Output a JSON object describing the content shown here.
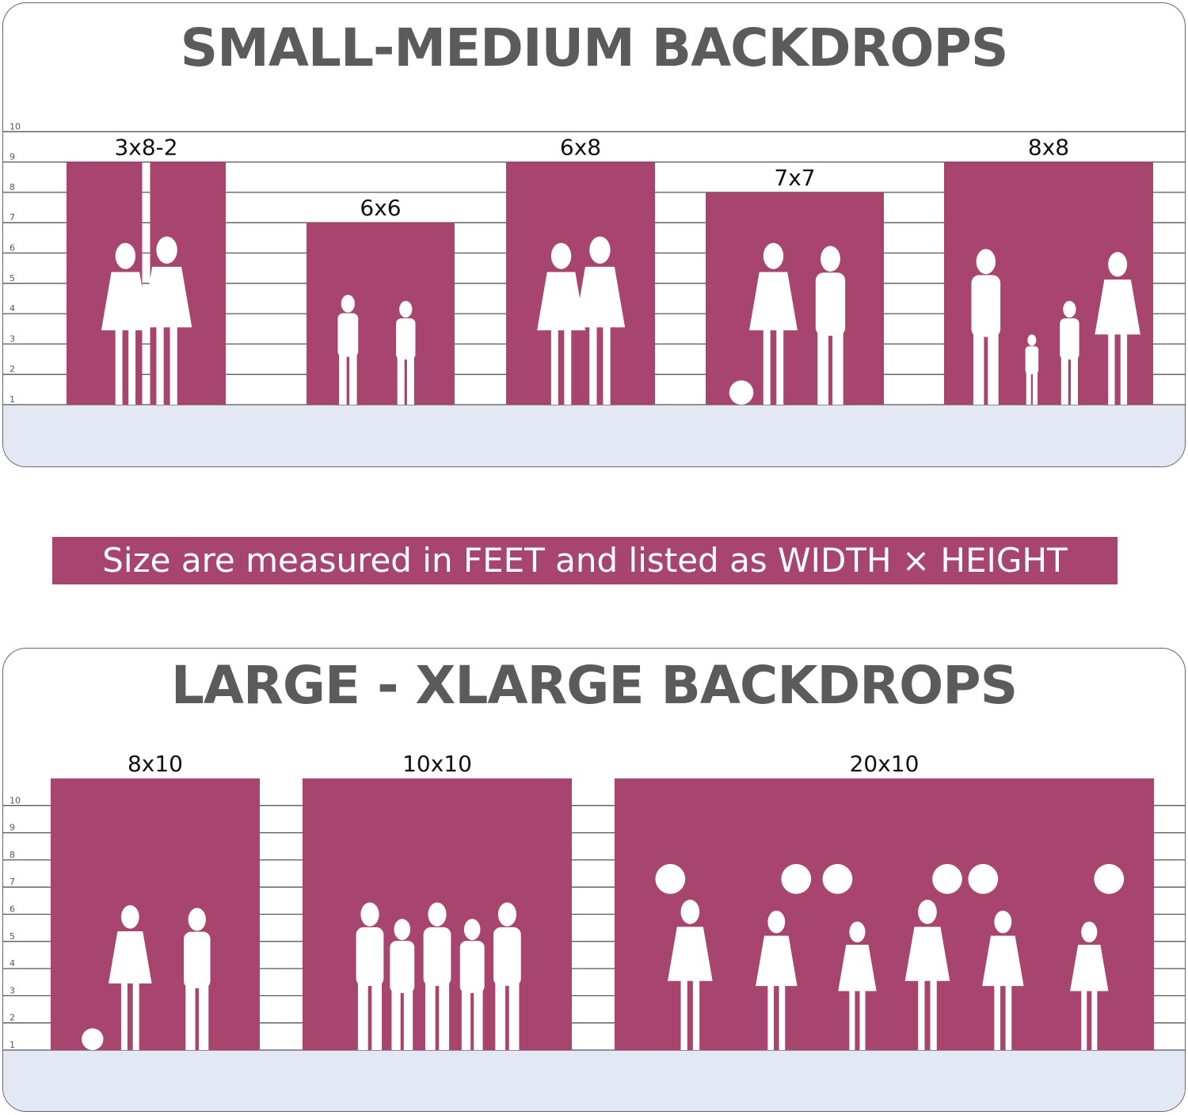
{
  "top_panel": {
    "title": "SMALL-MEDIUM BACKDROPS",
    "axis_ticks": [
      "1",
      "2",
      "3",
      "4",
      "5",
      "6",
      "7",
      "8",
      "9",
      "10"
    ],
    "backdrops": [
      {
        "label": "3x8-2",
        "width_ft": 3,
        "height_ft": 8,
        "panels": 2,
        "silhouette": "two-girls"
      },
      {
        "label": "6x6",
        "width_ft": 6,
        "height_ft": 6,
        "panels": 1,
        "silhouette": "two-children"
      },
      {
        "label": "6x8",
        "width_ft": 6,
        "height_ft": 8,
        "panels": 1,
        "silhouette": "two-girls"
      },
      {
        "label": "7x7",
        "width_ft": 7,
        "height_ft": 7,
        "panels": 1,
        "silhouette": "couple-with-bicycle"
      },
      {
        "label": "8x8",
        "width_ft": 8,
        "height_ft": 8,
        "panels": 1,
        "silhouette": "family-of-four"
      }
    ]
  },
  "banner": {
    "text": "Size are measured in FEET and listed as WIDTH × HEIGHT"
  },
  "bottom_panel": {
    "title": "LARGE - XLARGE BACKDROPS",
    "axis_ticks": [
      "1",
      "2",
      "3",
      "4",
      "5",
      "6",
      "7",
      "8",
      "9",
      "10"
    ],
    "backdrops": [
      {
        "label": "8x10",
        "width_ft": 8,
        "height_ft": 10,
        "panels": 1,
        "silhouette": "couple-with-bicycle"
      },
      {
        "label": "10x10",
        "width_ft": 10,
        "height_ft": 10,
        "panels": 1,
        "silhouette": "group"
      },
      {
        "label": "20x10",
        "width_ft": 20,
        "height_ft": 10,
        "panels": 1,
        "silhouette": "cheerleaders"
      }
    ]
  },
  "colors": {
    "backdrop": "#a8456f",
    "floor": "#e4e8f5",
    "title": "#5b5b5b",
    "grid": "#555555"
  }
}
